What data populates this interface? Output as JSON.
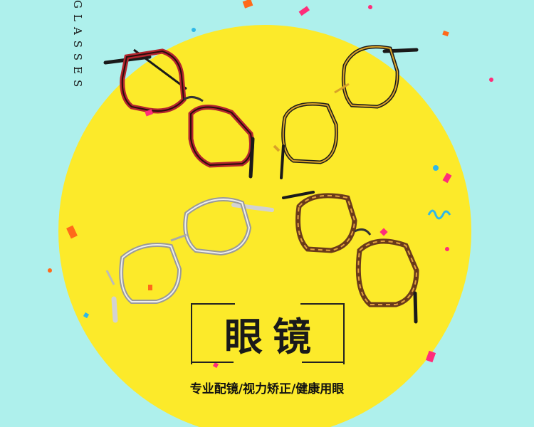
{
  "side_word": "GLASSES",
  "title": "眼镜",
  "subtitle": "专业配镜/视力矫正/健康用眼",
  "colors": {
    "background": "#aef0ec",
    "circle": "#fcea2a",
    "confetti_pink": "#ff2d7a",
    "confetti_orange": "#ff6a1a",
    "confetti_blue": "#2fb8e8"
  },
  "images": [
    {
      "name": "red-frame-glasses",
      "color": "#b3262e"
    },
    {
      "name": "gold-frame-glasses",
      "color": "#d9a228"
    },
    {
      "name": "silver-frame-glasses",
      "color": "#c9c9c9"
    },
    {
      "name": "tortoise-frame-glasses",
      "color": "#6a3a1a"
    }
  ]
}
